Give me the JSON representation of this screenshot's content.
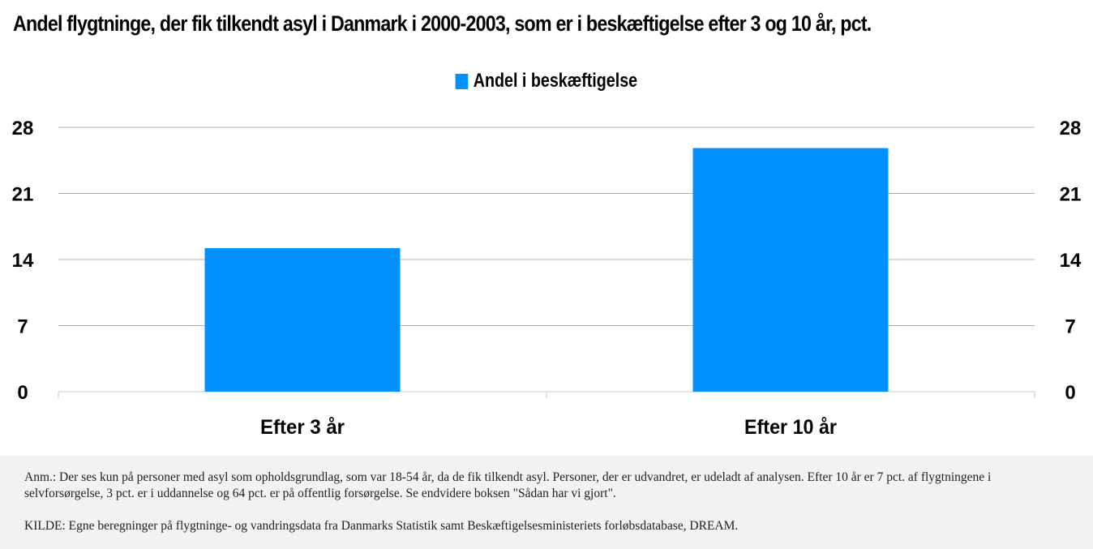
{
  "title": "Andel flygtninge, der fik tilkendt asyl i Danmark i 2000-2003, som er i beskæftigelse efter 3 og 10 år, pct.",
  "colors": {
    "bar": "#0090ff",
    "grid": "#b0b0b0"
  },
  "chart_data": {
    "type": "bar",
    "categories": [
      "Efter 3 år",
      "Efter 10 år"
    ],
    "series": [
      {
        "name": "Andel i beskæftigelse",
        "values": [
          15.2,
          25.8
        ]
      }
    ],
    "ylim": [
      0,
      28
    ],
    "yticks": [
      "0",
      "7",
      "14",
      "21",
      "28"
    ],
    "secondary_yticks": [
      "0",
      "7",
      "14",
      "21",
      "28"
    ],
    "grid": true,
    "legend": "top-center"
  },
  "footer": {
    "note": "Anm.: Der ses kun på personer med asyl som opholdsgrundlag, som var 18-54 år, da de fik tilkendt asyl. Personer, der er udvandret, er udeladt af analysen. Efter 10 år er 7 pct. af flygtningene i selvforsørgelse, 3 pct. er i uddannelse og 64 pct. er på offentlig forsørgelse. Se endvidere boksen \"Sådan har vi gjort\".",
    "source": "KILDE: Egne beregninger på flygtninge- og vandringsdata fra Danmarks Statistik samt Beskæftigelsesministeriets forløbsdatabase, DREAM."
  }
}
